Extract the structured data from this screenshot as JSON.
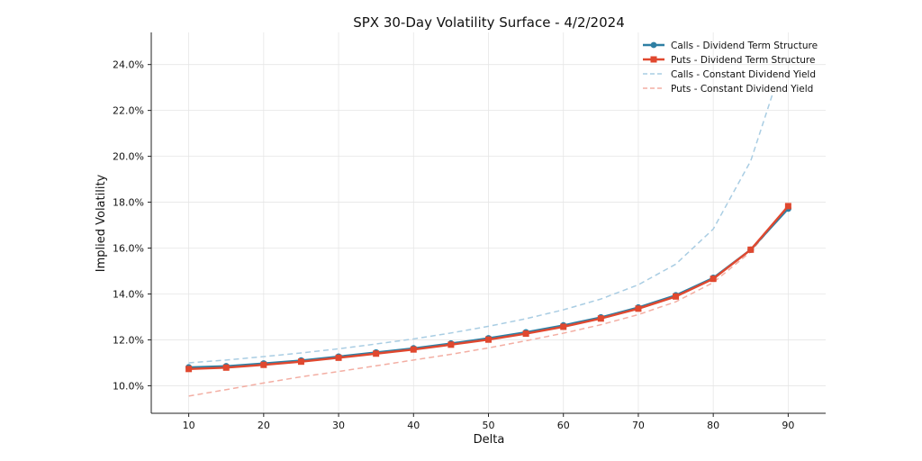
{
  "chart_data": {
    "type": "line",
    "title": "SPX 30-Day Volatility Surface - 4/2/2024",
    "xlabel": "Delta",
    "ylabel": "Implied Volatility",
    "xlim": [
      5,
      95
    ],
    "ylim": [
      8.8,
      25.4
    ],
    "xticks": [
      10,
      20,
      30,
      40,
      50,
      60,
      70,
      80,
      90
    ],
    "yticks": [
      10,
      12,
      14,
      16,
      18,
      20,
      22,
      24
    ],
    "ytick_labels": [
      "10.0%",
      "12.0%",
      "14.0%",
      "16.0%",
      "18.0%",
      "20.0%",
      "22.0%",
      "24.0%"
    ],
    "grid": true,
    "legend_position": "top-right",
    "series": [
      {
        "name": "Calls - Dividend Term Structure",
        "color": "#2e7fa3",
        "style": "solid",
        "marker": "circle",
        "x": [
          10,
          15,
          20,
          25,
          30,
          35,
          40,
          45,
          50,
          55,
          60,
          65,
          70,
          75,
          80,
          85,
          90
        ],
        "y": [
          10.8,
          10.85,
          10.97,
          11.1,
          11.27,
          11.45,
          11.63,
          11.84,
          12.07,
          12.33,
          12.63,
          12.98,
          13.41,
          13.94,
          14.7,
          15.93,
          17.72
        ]
      },
      {
        "name": "Puts - Dividend Term Structure",
        "color": "#e0482f",
        "style": "solid",
        "marker": "square",
        "x": [
          10,
          15,
          20,
          25,
          30,
          35,
          40,
          45,
          50,
          55,
          60,
          65,
          70,
          75,
          80,
          85,
          90
        ],
        "y": [
          10.73,
          10.79,
          10.91,
          11.05,
          11.22,
          11.4,
          11.58,
          11.79,
          12.01,
          12.27,
          12.57,
          12.93,
          13.36,
          13.89,
          14.66,
          15.93,
          17.83
        ]
      },
      {
        "name": "Calls - Constant Dividend Yield",
        "color": "#a9cde3",
        "style": "dashed",
        "marker": "none",
        "x": [
          10,
          15,
          20,
          25,
          30,
          35,
          40,
          45,
          50,
          55,
          60,
          65,
          70,
          75,
          80,
          85,
          88
        ],
        "y": [
          11.0,
          11.12,
          11.27,
          11.43,
          11.61,
          11.82,
          12.04,
          12.3,
          12.59,
          12.92,
          13.31,
          13.78,
          14.4,
          15.3,
          16.83,
          19.8,
          22.8
        ]
      },
      {
        "name": "Puts - Constant Dividend Yield",
        "color": "#f3aea3",
        "style": "dashed",
        "marker": "none",
        "x": [
          10,
          15,
          20,
          25,
          30,
          35,
          40,
          45,
          50,
          55,
          60,
          65,
          70,
          75,
          80,
          85,
          90
        ],
        "y": [
          9.55,
          9.83,
          10.12,
          10.39,
          10.62,
          10.87,
          11.12,
          11.37,
          11.65,
          11.96,
          12.29,
          12.66,
          13.1,
          13.66,
          14.5,
          15.84,
          17.78
        ]
      }
    ]
  }
}
